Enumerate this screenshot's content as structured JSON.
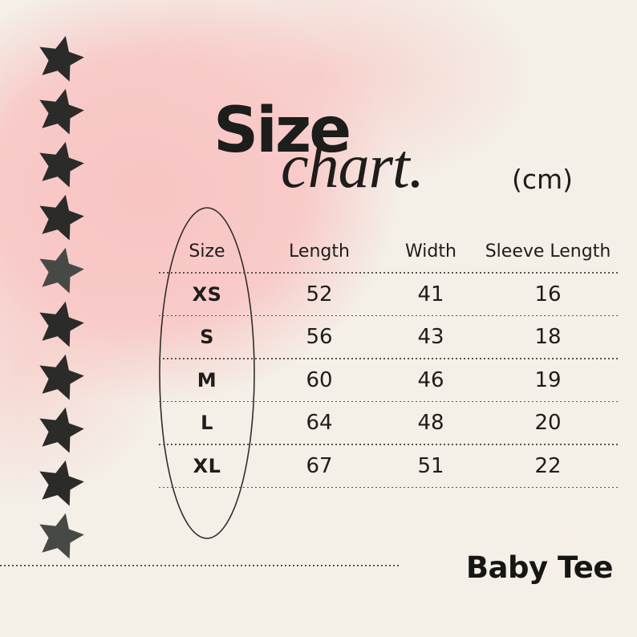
{
  "chart_data": {
    "type": "table",
    "title": "Size chart.",
    "unit_label": "(cm)",
    "columns": [
      "Size",
      "Length",
      "Width",
      "Sleeve Length"
    ],
    "rows": [
      [
        "XS",
        52,
        41,
        16
      ],
      [
        "S",
        56,
        43,
        18
      ],
      [
        "M",
        60,
        46,
        19
      ],
      [
        "L",
        64,
        48,
        20
      ],
      [
        "XL",
        67,
        51,
        22
      ]
    ]
  },
  "title": {
    "main": "Size",
    "script": "chart.",
    "unit": "(cm)"
  },
  "footer": {
    "product_label": "Baby Tee"
  },
  "decor": {
    "stars": [
      {
        "icon": "star-icon",
        "color": "#2b2b29"
      },
      {
        "icon": "star-icon",
        "color": "#2b2b29"
      },
      {
        "icon": "star-icon",
        "color": "#2b2b29"
      },
      {
        "icon": "star-icon",
        "color": "#2b2b29"
      },
      {
        "icon": "star-icon",
        "color": "#474947"
      },
      {
        "icon": "star-icon",
        "color": "#2b2b29"
      },
      {
        "icon": "star-icon",
        "color": "#2b2b29"
      },
      {
        "icon": "star-icon",
        "color": "#2b2b29"
      },
      {
        "icon": "star-icon",
        "color": "#2b2b29"
      },
      {
        "icon": "star-icon",
        "color": "#474947"
      }
    ]
  },
  "colors": {
    "pink": "#f8c5c4",
    "cream": "#f4efe7",
    "ink": "#1d1d1b",
    "line": "#57534e"
  }
}
